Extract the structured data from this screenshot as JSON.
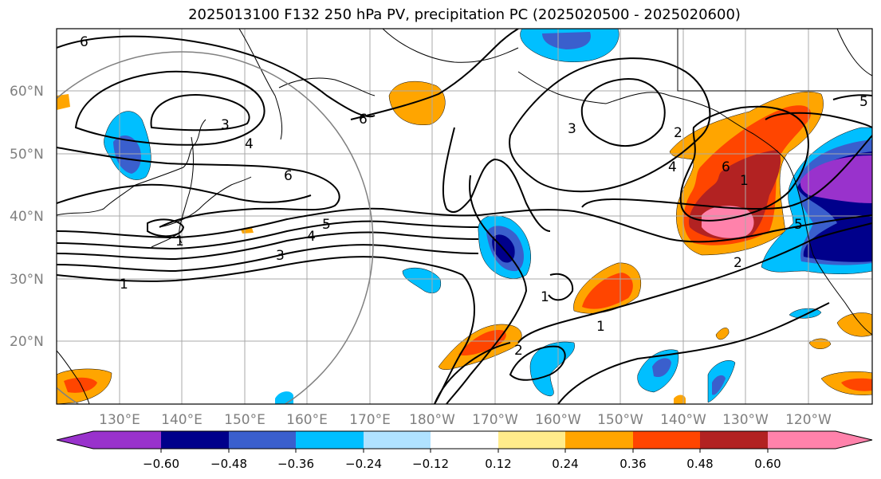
{
  "title": "2025013100 F132 250 hPa PV, precipitation PC (2025020500 - 2025020600)",
  "map": {
    "lon_labels": [
      "130°E",
      "140°E",
      "150°E",
      "160°E",
      "170°E",
      "180°W",
      "170°W",
      "160°W",
      "150°W",
      "140°W",
      "130°W",
      "120°W"
    ],
    "lat_labels": [
      "60°N",
      "50°N",
      "40°N",
      "30°N",
      "20°N"
    ],
    "contour_labels": [
      "6",
      "3",
      "4",
      "6",
      "5",
      "4",
      "3",
      "1",
      "1",
      "6",
      "2",
      "4",
      "6",
      "1",
      "2",
      "1",
      "5",
      "5",
      "3",
      "2",
      "1"
    ]
  },
  "colorbar": {
    "tick_labels": [
      "−0.60",
      "−0.48",
      "−0.36",
      "−0.24",
      "−0.12",
      "0.12",
      "0.24",
      "0.36",
      "0.48",
      "0.60"
    ],
    "colors": [
      "#9932cc",
      "#00008b",
      "#3a5fcd",
      "#00bfff",
      "#b0e2ff",
      "#ffffff",
      "#ffec8b",
      "#ffa500",
      "#ff4500",
      "#b22222",
      "#ff82ab"
    ]
  }
}
